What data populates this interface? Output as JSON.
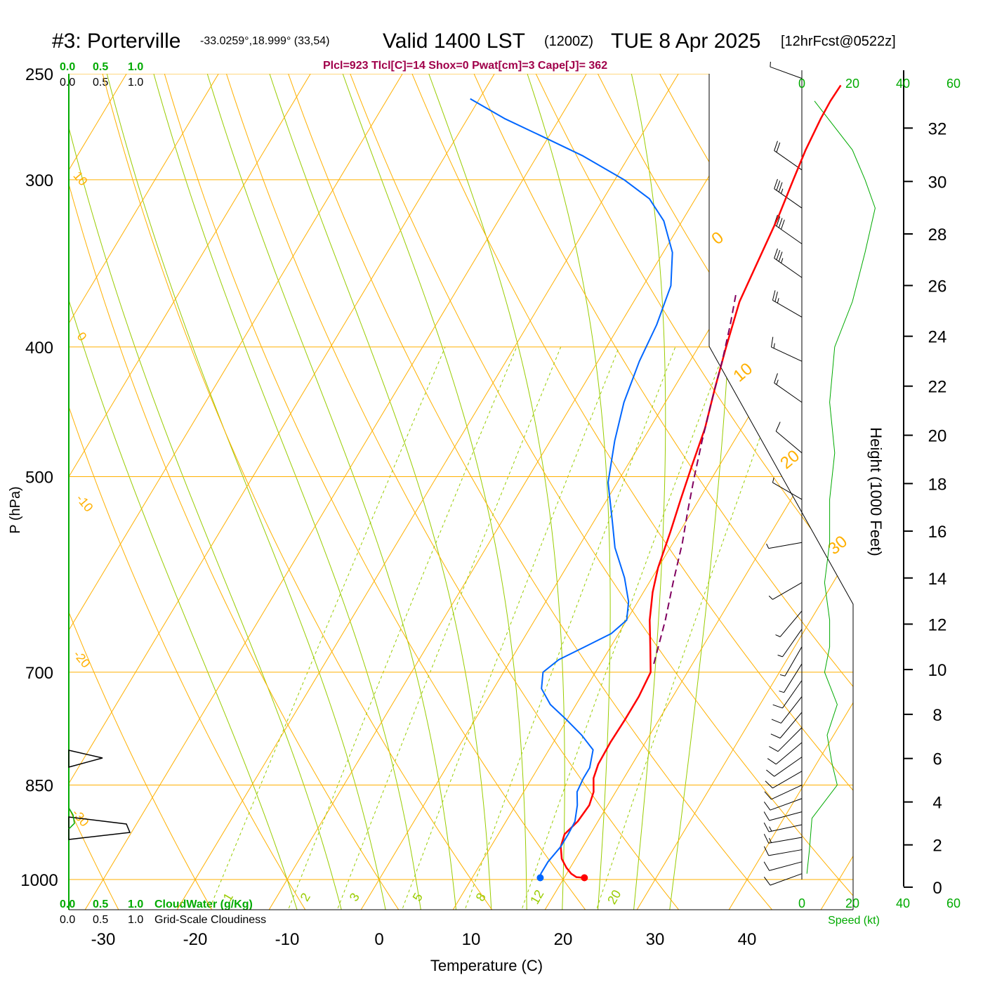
{
  "header": {
    "station": "#3: Porterville",
    "coords": "-33.0259°,18.999° (33,54)",
    "valid": "Valid 1400 LST",
    "zulu": "(1200Z)",
    "date": "TUE 8 Apr 2025",
    "forecast": "[12hrFcst@0522z]",
    "indices": "Plcl=923 Tlcl[C]=14 Shox=0 Pwat[cm]=3 Cape[J]= 362"
  },
  "colors": {
    "temperature": "#ff0000",
    "dewpoint": "#0066ff",
    "parcel": "#800060",
    "isobar": "#ffb000",
    "dry_adiabat": "#ffb000",
    "moist_adiabat": "#99cc00",
    "mixing_ratio": "#99cc00",
    "cloud_scale": "#00aa00",
    "wind_speed": "#00aa00",
    "indices_text": "#a0004a"
  },
  "axes": {
    "xlabel": "Temperature (C)",
    "ylabel": "P (hPa)",
    "right_label": "Height (1000 Feet)",
    "speed_label": "Speed (kt)",
    "cloudwater_label": "CloudWater (g/Kg)",
    "cloudiness_label": "Grid-Scale Cloudiness"
  },
  "cloud_scale_labels": [
    "0.0",
    "0.5",
    "1.0"
  ],
  "speed_ticks": [
    "0",
    "20",
    "40",
    "60"
  ],
  "chart_data": {
    "type": "line",
    "skewt": true,
    "pressure_ticks": [
      250,
      300,
      400,
      500,
      700,
      850,
      1000
    ],
    "temperature_ticks": [
      -30,
      -20,
      -10,
      0,
      10,
      20,
      30,
      40
    ],
    "height_ticks_kft": [
      0,
      2,
      4,
      6,
      8,
      10,
      12,
      14,
      16,
      18,
      20,
      22,
      24,
      26,
      28,
      30,
      32
    ],
    "ylim_hpa": [
      1000,
      250
    ],
    "xlim_c": [
      -33,
      36
    ],
    "dry_adiabat_labels": [
      "10",
      "0",
      "-10",
      "-20",
      "-30"
    ],
    "moist_adiabat_labels": [
      "0",
      "10",
      "20",
      "30"
    ],
    "mixing_ratio_labels": [
      "1",
      "2",
      "3",
      "5",
      "8",
      "12",
      "20"
    ],
    "series": [
      {
        "name": "Temperature",
        "points": [
          [
            22.2,
            997
          ],
          [
            21.3,
            996
          ],
          [
            20.5,
            990
          ],
          [
            19.6,
            980
          ],
          [
            18.5,
            965
          ],
          [
            17.6,
            945
          ],
          [
            17.2,
            925
          ],
          [
            17.8,
            905
          ],
          [
            18.0,
            880
          ],
          [
            17.6,
            860
          ],
          [
            16.7,
            840
          ],
          [
            16.3,
            820
          ],
          [
            16.2,
            790
          ],
          [
            16.3,
            760
          ],
          [
            16.3,
            730
          ],
          [
            16.0,
            700
          ],
          [
            14.3,
            670
          ],
          [
            12.5,
            640
          ],
          [
            11.0,
            610
          ],
          [
            10.0,
            585
          ],
          [
            9.0,
            550
          ],
          [
            8.0,
            520
          ],
          [
            7.0,
            490
          ],
          [
            6.0,
            460
          ],
          [
            4.5,
            430
          ],
          [
            3.0,
            400
          ],
          [
            1.5,
            370
          ],
          [
            1.0,
            350
          ],
          [
            0.2,
            320
          ],
          [
            -0.6,
            300
          ],
          [
            -1.2,
            285
          ],
          [
            -1.6,
            270
          ],
          [
            -1.7,
            262
          ],
          [
            -1.6,
            255
          ]
        ]
      },
      {
        "name": "Dewpoint",
        "points": [
          [
            17.4,
            997
          ],
          [
            17.2,
            990
          ],
          [
            17.2,
            970
          ],
          [
            17.6,
            945
          ],
          [
            17.6,
            925
          ],
          [
            17.5,
            905
          ],
          [
            16.7,
            880
          ],
          [
            15.8,
            860
          ],
          [
            15.6,
            840
          ],
          [
            15.6,
            825
          ],
          [
            14.8,
            800
          ],
          [
            12.6,
            780
          ],
          [
            10.0,
            760
          ],
          [
            7.2,
            740
          ],
          [
            5.2,
            720
          ],
          [
            4.3,
            700
          ],
          [
            5.2,
            685
          ],
          [
            7.2,
            670
          ],
          [
            9.2,
            655
          ],
          [
            10.0,
            640
          ],
          [
            9.0,
            620
          ],
          [
            7.0,
            595
          ],
          [
            4.0,
            565
          ],
          [
            2.0,
            540
          ],
          [
            -1.0,
            505
          ],
          [
            -3.0,
            470
          ],
          [
            -4.5,
            440
          ],
          [
            -5.5,
            410
          ],
          [
            -6.0,
            385
          ],
          [
            -7.0,
            360
          ],
          [
            -9.0,
            340
          ],
          [
            -12.0,
            322
          ],
          [
            -15.0,
            310
          ],
          [
            -19.0,
            300
          ],
          [
            -25.0,
            288
          ],
          [
            -31.0,
            278
          ],
          [
            -36.0,
            270
          ],
          [
            -41.0,
            261
          ]
        ]
      },
      {
        "name": "Parcel",
        "points": [
          [
            15.8,
            690
          ],
          [
            14.2,
            640
          ],
          [
            12.6,
            600
          ],
          [
            11.0,
            560
          ],
          [
            9.5,
            530
          ],
          [
            8.0,
            500
          ],
          [
            6.5,
            470
          ],
          [
            5.0,
            440
          ],
          [
            3.5,
            410
          ],
          [
            2.0,
            385
          ],
          [
            0.6,
            365
          ]
        ]
      }
    ],
    "wind_profile": [
      {
        "p": 990,
        "dir": 250,
        "spd": 10
      },
      {
        "p": 970,
        "dir": 255,
        "spd": 12
      },
      {
        "p": 950,
        "dir": 260,
        "spd": 14
      },
      {
        "p": 930,
        "dir": 260,
        "spd": 15
      },
      {
        "p": 910,
        "dir": 258,
        "spd": 15
      },
      {
        "p": 890,
        "dir": 255,
        "spd": 14
      },
      {
        "p": 870,
        "dir": 250,
        "spd": 14
      },
      {
        "p": 850,
        "dir": 245,
        "spd": 13
      },
      {
        "p": 830,
        "dir": 240,
        "spd": 11
      },
      {
        "p": 810,
        "dir": 235,
        "spd": 11
      },
      {
        "p": 790,
        "dir": 230,
        "spd": 12
      },
      {
        "p": 770,
        "dir": 225,
        "spd": 12
      },
      {
        "p": 750,
        "dir": 220,
        "spd": 12
      },
      {
        "p": 730,
        "dir": 218,
        "spd": 11
      },
      {
        "p": 710,
        "dir": 215,
        "spd": 10
      },
      {
        "p": 690,
        "dir": 212,
        "spd": 9
      },
      {
        "p": 670,
        "dir": 210,
        "spd": 7
      },
      {
        "p": 650,
        "dir": 215,
        "spd": 6
      },
      {
        "p": 630,
        "dir": 220,
        "spd": 5
      },
      {
        "p": 600,
        "dir": 240,
        "spd": 5
      },
      {
        "p": 560,
        "dir": 260,
        "spd": 5
      },
      {
        "p": 520,
        "dir": 300,
        "spd": 6
      },
      {
        "p": 480,
        "dir": 310,
        "spd": 12
      },
      {
        "p": 440,
        "dir": 305,
        "spd": 15
      },
      {
        "p": 410,
        "dir": 295,
        "spd": 16
      },
      {
        "p": 380,
        "dir": 300,
        "spd": 25
      },
      {
        "p": 355,
        "dir": 305,
        "spd": 35
      },
      {
        "p": 335,
        "dir": 305,
        "spd": 40
      },
      {
        "p": 315,
        "dir": 305,
        "spd": 35
      },
      {
        "p": 295,
        "dir": 305,
        "spd": 20
      },
      {
        "p": 252,
        "dir": 290,
        "spd": 5
      }
    ],
    "speed_profile_kt": [
      [
        990,
        2
      ],
      [
        950,
        3
      ],
      [
        900,
        4
      ],
      [
        850,
        14
      ],
      [
        820,
        12
      ],
      [
        780,
        10
      ],
      [
        740,
        14
      ],
      [
        700,
        9
      ],
      [
        670,
        11
      ],
      [
        640,
        11
      ],
      [
        600,
        9
      ],
      [
        560,
        11
      ],
      [
        520,
        11
      ],
      [
        480,
        13
      ],
      [
        440,
        11
      ],
      [
        400,
        13
      ],
      [
        370,
        20
      ],
      [
        340,
        25
      ],
      [
        315,
        29
      ],
      [
        300,
        25
      ],
      [
        285,
        20
      ],
      [
        262,
        5
      ]
    ]
  }
}
